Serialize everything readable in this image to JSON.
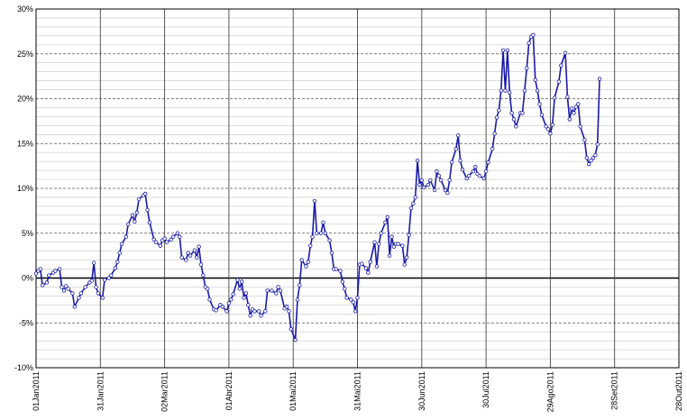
{
  "chart_data": {
    "type": "line",
    "color": "#1a1aa6",
    "markers": true,
    "grid": true,
    "xlim": [
      "2011-01-01",
      "2011-10-28"
    ],
    "xticks": [
      {
        "value": "2011-01-01",
        "label": "01Jan2011"
      },
      {
        "value": "2011-01-31",
        "label": "31Jan2011"
      },
      {
        "value": "2011-03-02",
        "label": "02Mar2011"
      },
      {
        "value": "2011-04-01",
        "label": "01Abr2011"
      },
      {
        "value": "2011-05-01",
        "label": "01Mai2011"
      },
      {
        "value": "2011-05-31",
        "label": "31Mai2011"
      },
      {
        "value": "2011-06-30",
        "label": "30Jun2011"
      },
      {
        "value": "2011-07-30",
        "label": "30Jul2011"
      },
      {
        "value": "2011-08-29",
        "label": "29Ago2011"
      },
      {
        "value": "2011-09-28",
        "label": "28Set2011"
      },
      {
        "value": "2011-10-28",
        "label": "28Out2011"
      }
    ],
    "ylim": [
      -10,
      30
    ],
    "yticks": [
      {
        "value": -10,
        "label": "-10%"
      },
      {
        "value": -5,
        "label": "-5%"
      },
      {
        "value": 0,
        "label": "0%"
      },
      {
        "value": 5,
        "label": "5%"
      },
      {
        "value": 10,
        "label": "10%"
      },
      {
        "value": 15,
        "label": "15%"
      },
      {
        "value": 20,
        "label": "20%"
      },
      {
        "value": 25,
        "label": "25%"
      },
      {
        "value": 30,
        "label": "30%"
      }
    ],
    "yminorticks": [
      -9,
      -8,
      -7,
      -6,
      -4,
      -3,
      -2,
      -1,
      1,
      2,
      3,
      4,
      6,
      7,
      8,
      9,
      11,
      12,
      13,
      14,
      16,
      17,
      18,
      19,
      21,
      22,
      23,
      24,
      26,
      27,
      28,
      29
    ],
    "x": [
      "2011-01-01",
      "2011-01-02",
      "2011-01-03",
      "2011-01-04",
      "2011-01-06",
      "2011-01-07",
      "2011-01-09",
      "2011-01-10",
      "2011-01-12",
      "2011-01-13",
      "2011-01-14",
      "2011-01-15",
      "2011-01-16",
      "2011-01-18",
      "2011-01-19",
      "2011-01-21",
      "2011-01-22",
      "2011-01-24",
      "2011-01-26",
      "2011-01-27",
      "2011-01-28",
      "2011-01-29",
      "2011-01-30",
      "2011-02-01",
      "2011-02-02",
      "2011-02-04",
      "2011-02-05",
      "2011-02-07",
      "2011-02-08",
      "2011-02-09",
      "2011-02-10",
      "2011-02-12",
      "2011-02-13",
      "2011-02-15",
      "2011-02-16",
      "2011-02-17",
      "2011-02-18",
      "2011-02-20",
      "2011-02-21",
      "2011-02-22",
      "2011-02-23",
      "2011-02-25",
      "2011-02-26",
      "2011-02-28",
      "2011-03-01",
      "2011-03-02",
      "2011-03-03",
      "2011-03-05",
      "2011-03-06",
      "2011-03-08",
      "2011-03-09",
      "2011-03-10",
      "2011-03-12",
      "2011-03-13",
      "2011-03-14",
      "2011-03-16",
      "2011-03-17",
      "2011-03-18",
      "2011-03-19",
      "2011-03-20",
      "2011-03-21",
      "2011-03-22",
      "2011-03-23",
      "2011-03-25",
      "2011-03-26",
      "2011-03-28",
      "2011-03-29",
      "2011-03-31",
      "2011-04-01",
      "2011-04-02",
      "2011-04-03",
      "2011-04-05",
      "2011-04-06",
      "2011-04-07",
      "2011-04-08",
      "2011-04-09",
      "2011-04-10",
      "2011-04-11",
      "2011-04-12",
      "2011-04-13",
      "2011-04-15",
      "2011-04-16",
      "2011-04-18",
      "2011-04-19",
      "2011-04-21",
      "2011-04-23",
      "2011-04-24",
      "2011-04-25",
      "2011-04-27",
      "2011-04-28",
      "2011-04-29",
      "2011-04-30",
      "2011-05-02",
      "2011-05-03",
      "2011-05-04",
      "2011-05-05",
      "2011-05-07",
      "2011-05-08",
      "2011-05-09",
      "2011-05-10",
      "2011-05-11",
      "2011-05-12",
      "2011-05-14",
      "2011-05-15",
      "2011-05-16",
      "2011-05-18",
      "2011-05-19",
      "2011-05-20",
      "2011-05-21",
      "2011-05-23",
      "2011-05-24",
      "2011-05-25",
      "2011-05-26",
      "2011-05-28",
      "2011-05-29",
      "2011-05-30",
      "2011-05-31",
      "2011-06-01",
      "2011-06-02",
      "2011-06-04",
      "2011-06-05",
      "2011-06-06",
      "2011-06-08",
      "2011-06-09",
      "2011-06-10",
      "2011-06-11",
      "2011-06-13",
      "2011-06-14",
      "2011-06-15",
      "2011-06-16",
      "2011-06-17",
      "2011-06-18",
      "2011-06-19",
      "2011-06-21",
      "2011-06-22",
      "2011-06-23",
      "2011-06-24",
      "2011-06-25",
      "2011-06-26",
      "2011-06-27",
      "2011-06-28",
      "2011-06-29",
      "2011-06-30",
      "2011-07-01",
      "2011-07-03",
      "2011-07-04",
      "2011-07-06",
      "2011-07-07",
      "2011-07-08",
      "2011-07-09",
      "2011-07-11",
      "2011-07-12",
      "2011-07-13",
      "2011-07-14",
      "2011-07-16",
      "2011-07-17",
      "2011-07-18",
      "2011-07-19",
      "2011-07-21",
      "2011-07-22",
      "2011-07-24",
      "2011-07-25",
      "2011-07-26",
      "2011-07-27",
      "2011-07-29",
      "2011-07-30",
      "2011-07-31",
      "2011-08-02",
      "2011-08-03",
      "2011-08-04",
      "2011-08-05",
      "2011-08-06",
      "2011-08-07",
      "2011-08-08",
      "2011-08-09",
      "2011-08-10",
      "2011-08-11",
      "2011-08-12",
      "2011-08-13",
      "2011-08-15",
      "2011-08-16",
      "2011-08-17",
      "2011-08-18",
      "2011-08-19",
      "2011-08-20",
      "2011-08-21",
      "2011-08-22",
      "2011-08-23",
      "2011-08-24",
      "2011-08-25",
      "2011-08-27",
      "2011-08-28",
      "2011-08-29",
      "2011-08-30",
      "2011-08-31",
      "2011-09-02",
      "2011-09-03",
      "2011-09-05",
      "2011-09-06",
      "2011-09-07",
      "2011-09-08",
      "2011-09-09",
      "2011-09-10",
      "2011-09-11",
      "2011-09-12",
      "2011-09-14",
      "2011-09-15",
      "2011-09-16",
      "2011-09-17",
      "2011-09-18",
      "2011-09-19",
      "2011-09-20",
      "2011-09-21"
    ],
    "values": [
      0.5,
      0.8,
      1.0,
      -0.8,
      -0.5,
      0.3,
      0.6,
      0.8,
      1.0,
      -1.0,
      -1.4,
      -0.9,
      -1.2,
      -1.7,
      -3.2,
      -2.2,
      -1.7,
      -1.0,
      -0.5,
      -0.3,
      1.7,
      -1.0,
      -1.7,
      -2.2,
      -0.2,
      0,
      0.3,
      1.1,
      1.8,
      2.8,
      3.8,
      4.6,
      6.0,
      7.0,
      6.3,
      7.3,
      8.8,
      9.2,
      9.4,
      7.6,
      6.2,
      4.3,
      4.0,
      3.6,
      4.2,
      4.4,
      4.0,
      4.3,
      4.6,
      5.0,
      4.6,
      2.3,
      2.0,
      2.8,
      2.5,
      3.1,
      2.3,
      3.5,
      1.5,
      0.3,
      -1.0,
      -1.2,
      -2.4,
      -3.5,
      -3.6,
      -3.0,
      -3.2,
      -3.7,
      -2.8,
      -2.4,
      -1.8,
      -0.2,
      -1.2,
      -0.4,
      -2.2,
      -1.7,
      -3.0,
      -4.2,
      -3.5,
      -3.7,
      -3.7,
      -4.2,
      -3.7,
      -1.4,
      -1.4,
      -1.7,
      -1.0,
      -1.4,
      -3.4,
      -3.2,
      -3.7,
      -5.7,
      -6.9,
      -2.4,
      -0.8,
      2.0,
      1.3,
      1.8,
      3.6,
      4.6,
      8.6,
      5.0,
      5.0,
      6.2,
      5.0,
      4.2,
      2.8,
      1.0,
      1.0,
      0.8,
      -0.4,
      -1.2,
      -2.2,
      -2.4,
      -2.7,
      -3.7,
      -2.2,
      1.5,
      1.6,
      1.1,
      0.6,
      1.8,
      4.0,
      1.3,
      3.8,
      5.0,
      6.2,
      6.8,
      2.5,
      4.6,
      3.5,
      3.8,
      3.8,
      3.6,
      1.5,
      2.3,
      4.8,
      7.8,
      8.3,
      9.0,
      13.1,
      10.4,
      10.9,
      10.1,
      10.4,
      10.9,
      9.8,
      11.9,
      11.4,
      10.9,
      9.8,
      9.5,
      10.9,
      12.9,
      14.4,
      15.9,
      13.1,
      12.1,
      11.1,
      11.4,
      11.9,
      12.4,
      11.6,
      11.4,
      11.1,
      11.9,
      12.9,
      14.4,
      16.1,
      17.9,
      18.7,
      20.9,
      25.4,
      20.9,
      25.4,
      20.7,
      18.4,
      17.7,
      16.9,
      18.4,
      18.4,
      20.9,
      23.4,
      26.2,
      26.9,
      27.1,
      22.1,
      20.9,
      19.4,
      18.2,
      16.9,
      16.6,
      16.1,
      17.1,
      20.1,
      21.9,
      23.7,
      25.1,
      20.2,
      17.7,
      18.9,
      18.4,
      19.1,
      19.4,
      16.9,
      15.4,
      13.4,
      12.7,
      13.1,
      13.4,
      13.7,
      14.9,
      22.2
    ]
  }
}
